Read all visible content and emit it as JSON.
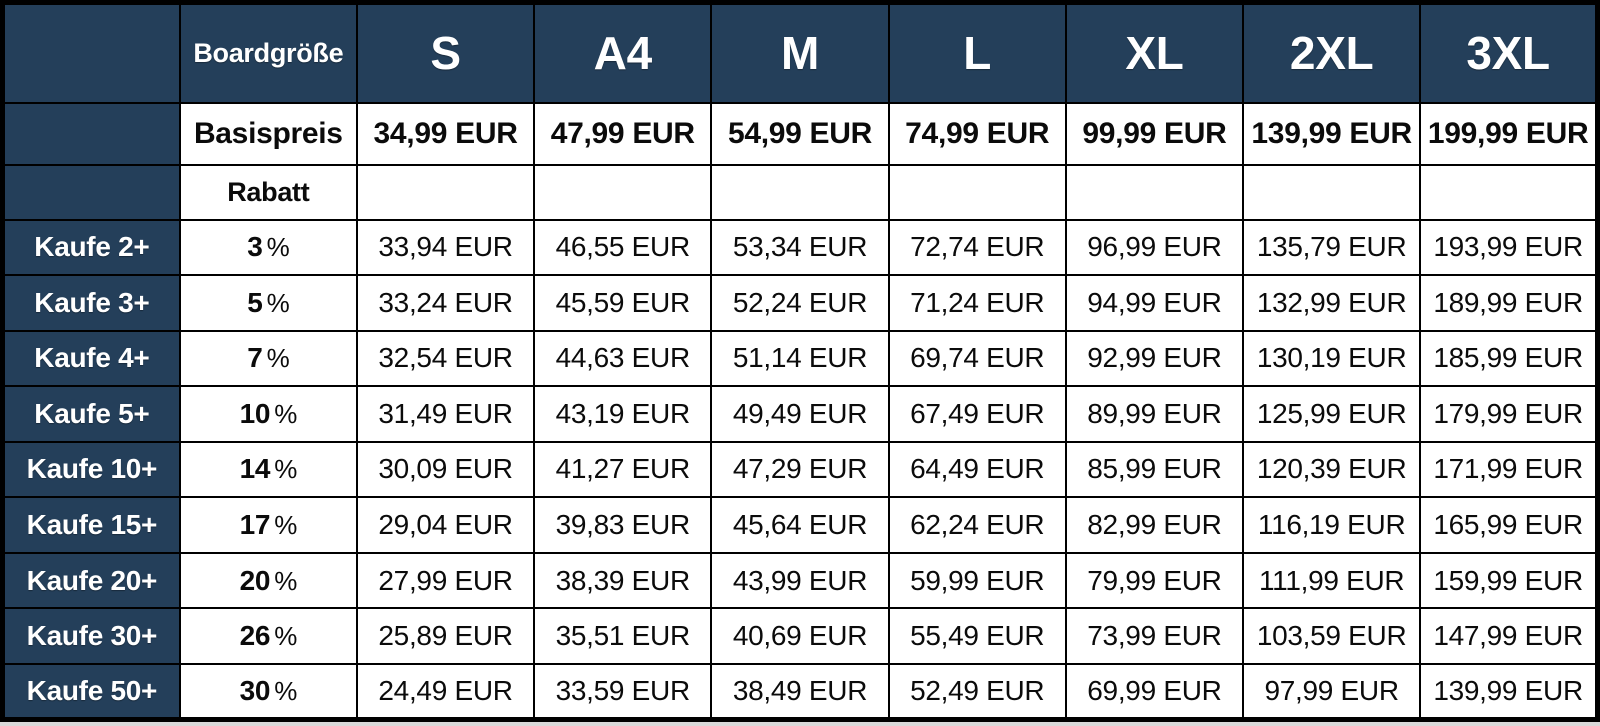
{
  "colors": {
    "header_bg": "#243F5A",
    "border": "#000000",
    "cell_bg": "#FFFFFF",
    "header_text": "#FFFFFF",
    "body_text": "#0B0B0B"
  },
  "chart_data": {
    "type": "table",
    "size_header_label": "Boardgröße",
    "sizes": [
      "S",
      "A4",
      "M",
      "L",
      "XL",
      "2XL",
      "3XL"
    ],
    "base_price_label": "Basispreis",
    "base_prices": [
      "34,99 EUR",
      "47,99 EUR",
      "54,99 EUR",
      "74,99 EUR",
      "99,99 EUR",
      "139,99 EUR",
      "199,99 EUR"
    ],
    "discount_label": "Rabatt",
    "percent_sign": "%",
    "discount_rows": [
      {
        "label": "Kaufe 2+",
        "discount": "3",
        "prices": [
          "33,94 EUR",
          "46,55 EUR",
          "53,34 EUR",
          "72,74 EUR",
          "96,99 EUR",
          "135,79 EUR",
          "193,99 EUR"
        ]
      },
      {
        "label": "Kaufe 3+",
        "discount": "5",
        "prices": [
          "33,24 EUR",
          "45,59 EUR",
          "52,24 EUR",
          "71,24 EUR",
          "94,99 EUR",
          "132,99 EUR",
          "189,99 EUR"
        ]
      },
      {
        "label": "Kaufe 4+",
        "discount": "7",
        "prices": [
          "32,54 EUR",
          "44,63 EUR",
          "51,14 EUR",
          "69,74 EUR",
          "92,99 EUR",
          "130,19 EUR",
          "185,99 EUR"
        ]
      },
      {
        "label": "Kaufe 5+",
        "discount": "10",
        "prices": [
          "31,49 EUR",
          "43,19 EUR",
          "49,49 EUR",
          "67,49 EUR",
          "89,99 EUR",
          "125,99 EUR",
          "179,99 EUR"
        ]
      },
      {
        "label": "Kaufe 10+",
        "discount": "14",
        "prices": [
          "30,09 EUR",
          "41,27 EUR",
          "47,29 EUR",
          "64,49 EUR",
          "85,99 EUR",
          "120,39 EUR",
          "171,99 EUR"
        ]
      },
      {
        "label": "Kaufe 15+",
        "discount": "17",
        "prices": [
          "29,04 EUR",
          "39,83 EUR",
          "45,64 EUR",
          "62,24 EUR",
          "82,99 EUR",
          "116,19 EUR",
          "165,99 EUR"
        ]
      },
      {
        "label": "Kaufe 20+",
        "discount": "20",
        "prices": [
          "27,99 EUR",
          "38,39 EUR",
          "43,99 EUR",
          "59,99 EUR",
          "79,99 EUR",
          "111,99 EUR",
          "159,99 EUR"
        ]
      },
      {
        "label": "Kaufe 30+",
        "discount": "26",
        "prices": [
          "25,89 EUR",
          "35,51 EUR",
          "40,69 EUR",
          "55,49 EUR",
          "73,99 EUR",
          "103,59 EUR",
          "147,99 EUR"
        ]
      },
      {
        "label": "Kaufe 50+",
        "discount": "30",
        "prices": [
          "24,49 EUR",
          "33,59 EUR",
          "38,49 EUR",
          "52,49 EUR",
          "69,99 EUR",
          "97,99 EUR",
          "139,99 EUR"
        ]
      }
    ]
  }
}
